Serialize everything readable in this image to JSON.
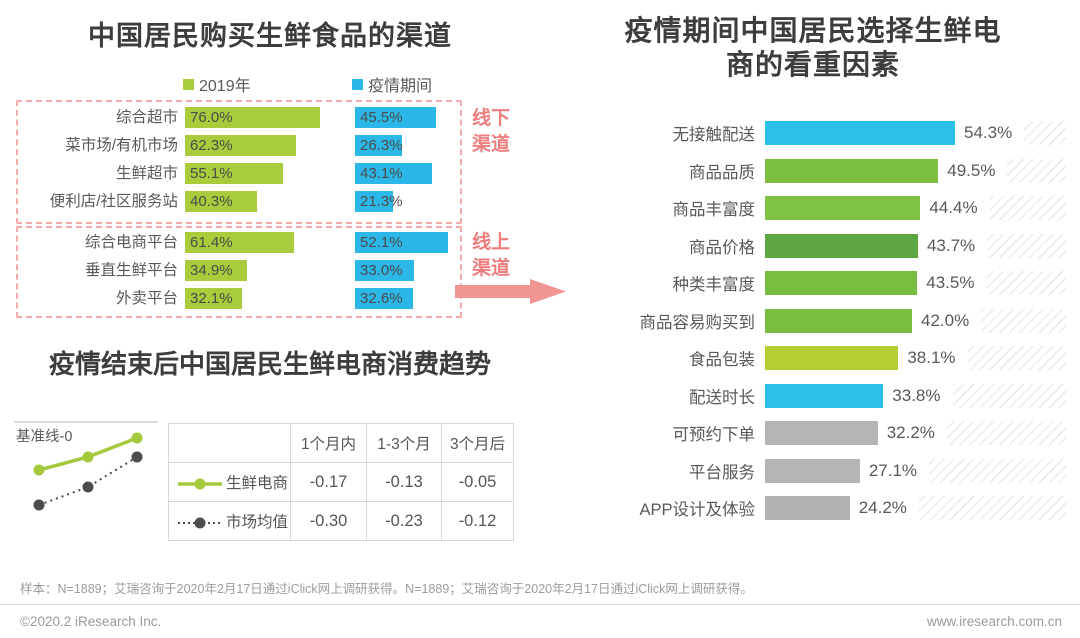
{
  "charts": {
    "channels": {
      "title": "中国居民购买生鲜食品的渠道",
      "legend": [
        {
          "label": "2019年",
          "color": "#a8cc3c"
        },
        {
          "label": "疫情期间",
          "color": "#2bb8e8"
        }
      ],
      "groups": [
        {
          "tag": "线下渠道",
          "rows": [
            {
              "label": "综合超市",
              "y2019": "76.0%",
              "covid": "45.5%"
            },
            {
              "label": "菜市场/有机市场",
              "y2019": "62.3%",
              "covid": "26.3%"
            },
            {
              "label": "生鲜超市",
              "y2019": "55.1%",
              "covid": "43.1%"
            },
            {
              "label": "便利店/社区服务站",
              "y2019": "40.3%",
              "covid": "21.3%"
            }
          ]
        },
        {
          "tag": "线上渠道",
          "rows": [
            {
              "label": "综合电商平台",
              "y2019": "61.4%",
              "covid": "52.1%"
            },
            {
              "label": "垂直生鲜平台",
              "y2019": "34.9%",
              "covid": "33.0%"
            },
            {
              "label": "外卖平台",
              "y2019": "32.1%",
              "covid": "32.6%"
            }
          ]
        }
      ]
    },
    "trend": {
      "title": "疫情结束后中国居民生鲜电商消费趋势",
      "baseline_label": "基准线-0",
      "columns": [
        "1个月内",
        "1-3个月",
        "3个月后"
      ],
      "rows": [
        {
          "label": "生鲜电商",
          "values": [
            "-0.17",
            "-0.13",
            "-0.05"
          ]
        },
        {
          "label": "市场均值",
          "values": [
            "-0.30",
            "-0.23",
            "-0.12"
          ]
        }
      ],
      "line_colors": {
        "fresh_ecommerce": "#a5c93c",
        "market_average": "#4d4d4d"
      }
    },
    "factors": {
      "title_lines": [
        "疫情期间中国居民选择生鲜电",
        "商的看重因素"
      ],
      "rows": [
        {
          "label": "无接触配送",
          "value": "54.3%",
          "color": "#29c0ea"
        },
        {
          "label": "商品品质",
          "value": "49.5%",
          "color": "#7dbf41"
        },
        {
          "label": "商品丰富度",
          "value": "44.4%",
          "color": "#7fc143"
        },
        {
          "label": "商品价格",
          "value": "43.7%",
          "color": "#5da644"
        },
        {
          "label": "种类丰富度",
          "value": "43.5%",
          "color": "#78bc40"
        },
        {
          "label": "商品容易购买到",
          "value": "42.0%",
          "color": "#78bc40"
        },
        {
          "label": "食品包装",
          "value": "38.1%",
          "color": "#b7ce33"
        },
        {
          "label": "配送时长",
          "value": "33.8%",
          "color": "#29c0ea"
        },
        {
          "label": "可预约下单",
          "value": "32.2%",
          "color": "#b5b5b5"
        },
        {
          "label": "平台服务",
          "value": "27.1%",
          "color": "#b5b5b5"
        },
        {
          "label": "APP设计及体验",
          "value": "24.2%",
          "color": "#b2b2b2"
        }
      ]
    }
  },
  "accent_colors": {
    "pink_border": "#f4abab",
    "pink_text": "#ee7d7d",
    "arrow": "#f19494",
    "green_2019": "#a8cc3c",
    "blue_covid": "#2bb8e8"
  },
  "footer": {
    "note": "样本：N=1889；艾瑞咨询于2020年2月17日通过iClick网上调研获得。N=1889；艾瑞咨询于2020年2月17日通过iClick网上调研获得。",
    "copyright": "©2020.2 iResearch Inc.",
    "website": "www.iresearch.com.cn"
  },
  "chart_data": [
    {
      "type": "bar",
      "orientation": "horizontal",
      "title": "中国居民购买生鲜食品的渠道",
      "categories": [
        "综合超市",
        "菜市场/有机市场",
        "生鲜超市",
        "便利店/社区服务站",
        "综合电商平台",
        "垂直生鲜平台",
        "外卖平台"
      ],
      "category_groups": {
        "线下渠道": [
          "综合超市",
          "菜市场/有机市场",
          "生鲜超市",
          "便利店/社区服务站"
        ],
        "线上渠道": [
          "综合电商平台",
          "垂直生鲜平台",
          "外卖平台"
        ]
      },
      "series": [
        {
          "name": "2019年",
          "values": [
            76.0,
            62.3,
            55.1,
            40.3,
            61.4,
            34.9,
            32.1
          ]
        },
        {
          "name": "疫情期间",
          "values": [
            45.5,
            26.3,
            43.1,
            21.3,
            52.1,
            33.0,
            32.6
          ]
        }
      ],
      "unit": "%",
      "legend_position": "top"
    },
    {
      "type": "line",
      "title": "疫情结束后中国居民生鲜电商消费趋势",
      "x": [
        "1个月内",
        "1-3个月",
        "3个月后"
      ],
      "series": [
        {
          "name": "生鲜电商",
          "values": [
            -0.17,
            -0.13,
            -0.05
          ]
        },
        {
          "name": "市场均值",
          "values": [
            -0.3,
            -0.23,
            -0.12
          ]
        }
      ],
      "baseline": {
        "label": "基准线-0",
        "value": 0
      },
      "table_shown": true,
      "legend_position": "table"
    },
    {
      "type": "bar",
      "orientation": "horizontal",
      "title": "疫情期间中国居民选择生鲜电商的看重因素",
      "categories": [
        "无接触配送",
        "商品品质",
        "商品丰富度",
        "商品价格",
        "种类丰富度",
        "商品容易购买到",
        "食品包装",
        "配送时长",
        "可预约下单",
        "平台服务",
        "APP设计及体验"
      ],
      "values": [
        54.3,
        49.5,
        44.4,
        43.7,
        43.5,
        42.0,
        38.1,
        33.8,
        32.2,
        27.1,
        24.2
      ],
      "unit": "%",
      "xlim": [
        0,
        60
      ]
    }
  ]
}
